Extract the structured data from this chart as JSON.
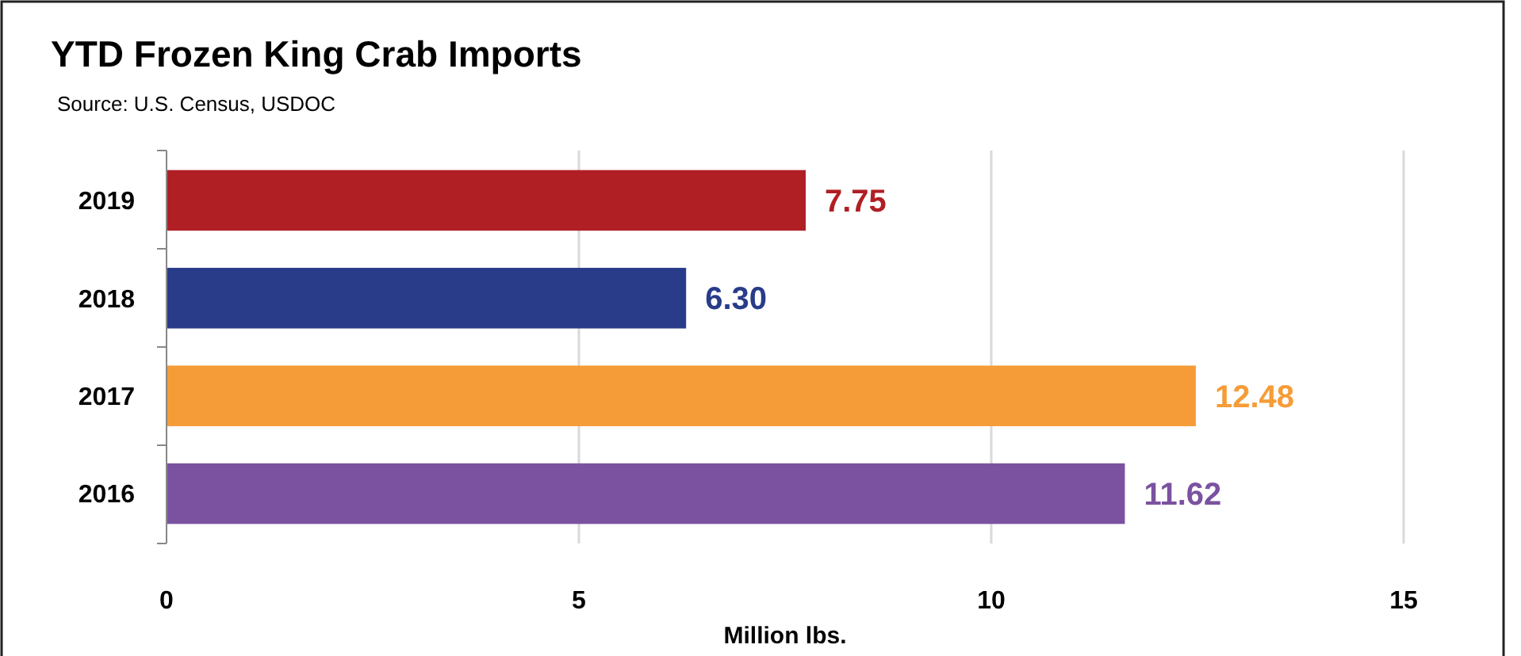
{
  "chart_data": {
    "type": "bar",
    "orientation": "horizontal",
    "title": "YTD Frozen King Crab Imports",
    "annotations": [
      "Source: U.S. Census, USDOC"
    ],
    "xlabel": "Million lbs.",
    "categories": [
      "2019",
      "2018",
      "2017",
      "2016"
    ],
    "values": [
      7.75,
      6.3,
      12.48,
      11.62
    ],
    "value_labels": [
      "7.75",
      "6.30",
      "12.48",
      "11.62"
    ],
    "colors": [
      "#b01f24",
      "#283c8a",
      "#f59c38",
      "#7b52a0"
    ],
    "xlim": [
      0,
      15
    ],
    "xticks": [
      0,
      5,
      10,
      15
    ],
    "grid": "x"
  }
}
